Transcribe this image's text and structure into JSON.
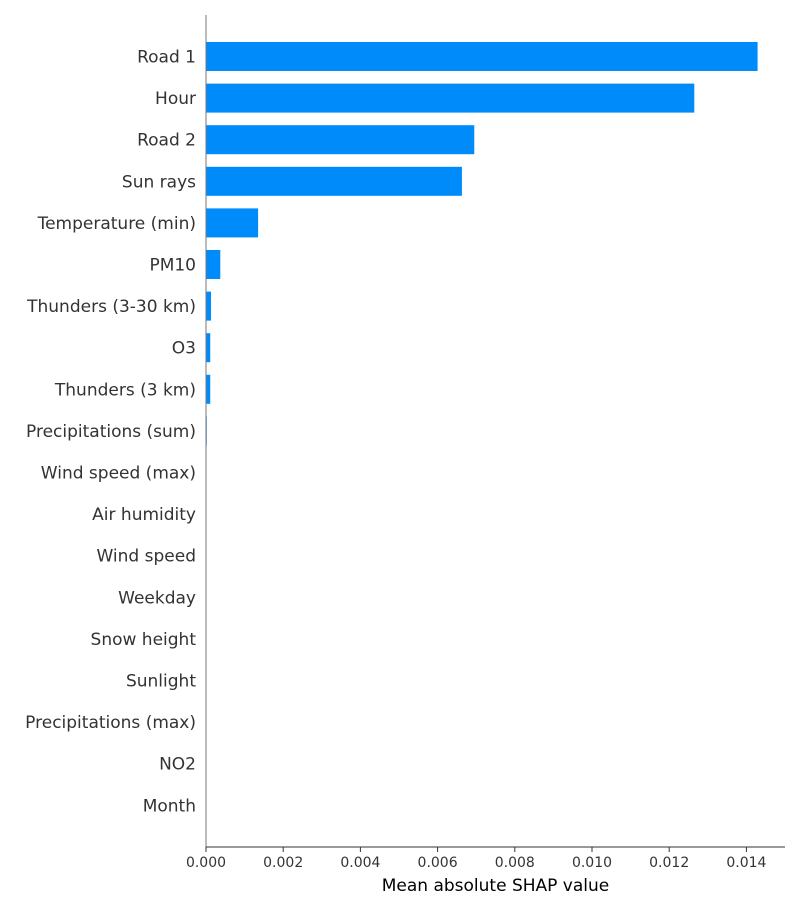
{
  "chart_data": {
    "type": "bar",
    "orientation": "horizontal",
    "title": "",
    "xlabel": "Mean absolute SHAP value",
    "ylabel": "",
    "xlim": [
      0,
      0.015
    ],
    "grid": false,
    "bar_color": "#008BFB",
    "categories": [
      "Road 1",
      "Hour",
      "Road 2",
      "Sun rays",
      "Temperature (min)",
      "PM10",
      "Thunders (3-30 km)",
      "O3",
      "Thunders (3 km)",
      "Precipitations (sum)",
      "Wind speed (max)",
      "Air humidity",
      "Wind speed",
      "Weekday",
      "Snow height",
      "Sunlight",
      "Precipitations (max)",
      "NO2",
      "Month"
    ],
    "values": [
      0.01429,
      0.01265,
      0.00695,
      0.00663,
      0.00135,
      0.00037,
      0.00013,
      0.00011,
      0.00011,
      2e-05,
      1e-05,
      0,
      0,
      0,
      0,
      0,
      0,
      0,
      0
    ],
    "xticks": [
      0.0,
      0.002,
      0.004,
      0.006,
      0.008,
      0.01,
      0.012,
      0.014
    ],
    "xtick_labels": [
      "0.000",
      "0.002",
      "0.004",
      "0.006",
      "0.008",
      "0.010",
      "0.012",
      "0.014"
    ]
  }
}
